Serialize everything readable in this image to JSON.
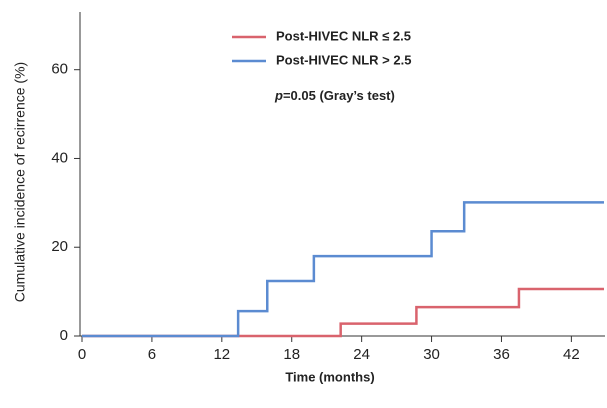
{
  "chart_data": {
    "type": "step",
    "xlabel": "Time (months)",
    "ylabel": "Cumulative incidence of recirrence (%)",
    "annotation": {
      "italic": "p",
      "text": "=0.05 (Gray’s test)"
    },
    "series": [
      {
        "name": "Post-HIVEC NLR ≤ 2.5",
        "color": "#d9636d",
        "x": [
          0,
          22.2,
          28.7,
          37.5,
          44.8
        ],
        "values": [
          0,
          2.8,
          6.5,
          10.6,
          10.6
        ]
      },
      {
        "name": "Post-HIVEC NLR > 2.5",
        "color": "#5b8bd1",
        "x": [
          0,
          13.4,
          15.9,
          19.9,
          30,
          32.8,
          44.8
        ],
        "values": [
          0,
          5.6,
          12.4,
          18,
          23.6,
          30.1,
          30.1
        ]
      }
    ],
    "xlim": [
      0,
      44.8
    ],
    "xticks": [
      0,
      6,
      12,
      18,
      24,
      30,
      36,
      42
    ],
    "ylim": [
      0,
      73
    ],
    "yticks": [
      0,
      20,
      40,
      60
    ]
  }
}
